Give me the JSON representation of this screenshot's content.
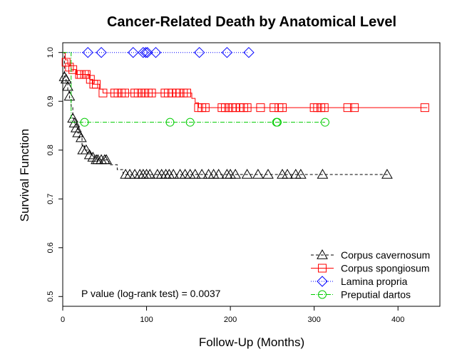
{
  "chart_data": {
    "type": "line",
    "subtype": "kaplan-meier",
    "title": "Cancer-Related Death by Anatomical Level",
    "xlabel": "Follow-Up (Months)",
    "ylabel": "Survival Function",
    "xlim": [
      0,
      450
    ],
    "ylim": [
      0.48,
      1.02
    ],
    "xticks": [
      0,
      100,
      200,
      300,
      400
    ],
    "yticks": [
      0.5,
      0.6,
      0.7,
      0.8,
      0.9,
      1.0
    ],
    "ytick_labels": [
      "0.5",
      "0.6",
      "0.7",
      "0.8",
      "0.9",
      "1.0"
    ],
    "grid": false,
    "legend_position": "bottom-right",
    "annotation": "P value (log-rank test) = 0.0037",
    "series": [
      {
        "name": "Corpus cavernosum",
        "color": "#000000",
        "dash": "4,3",
        "marker": "triangle",
        "steps": [
          [
            0,
            1.0
          ],
          [
            2,
            0.95
          ],
          [
            4,
            0.94
          ],
          [
            6,
            0.92
          ],
          [
            8,
            0.905
          ],
          [
            10,
            0.89
          ],
          [
            12,
            0.865
          ],
          [
            14,
            0.855
          ],
          [
            16,
            0.845
          ],
          [
            18,
            0.835
          ],
          [
            20,
            0.825
          ],
          [
            23,
            0.81
          ],
          [
            26,
            0.8
          ],
          [
            30,
            0.795
          ],
          [
            34,
            0.79
          ],
          [
            38,
            0.785
          ],
          [
            42,
            0.78
          ],
          [
            55,
            0.77
          ],
          [
            65,
            0.76
          ],
          [
            72,
            0.75
          ],
          [
            390,
            0.75
          ]
        ],
        "censored": [
          [
            2,
            0.95
          ],
          [
            4,
            0.945
          ],
          [
            6,
            0.93
          ],
          [
            8,
            0.91
          ],
          [
            12,
            0.865
          ],
          [
            14,
            0.855
          ],
          [
            16,
            0.845
          ],
          [
            18,
            0.835
          ],
          [
            22,
            0.825
          ],
          [
            24,
            0.8
          ],
          [
            28,
            0.8
          ],
          [
            32,
            0.79
          ],
          [
            36,
            0.785
          ],
          [
            40,
            0.78
          ],
          [
            42,
            0.78
          ],
          [
            46,
            0.78
          ],
          [
            50,
            0.78
          ],
          [
            52,
            0.78
          ],
          [
            75,
            0.75
          ],
          [
            80,
            0.75
          ],
          [
            86,
            0.75
          ],
          [
            92,
            0.75
          ],
          [
            96,
            0.75
          ],
          [
            100,
            0.75
          ],
          [
            104,
            0.75
          ],
          [
            113,
            0.75
          ],
          [
            118,
            0.75
          ],
          [
            123,
            0.75
          ],
          [
            127,
            0.75
          ],
          [
            132,
            0.75
          ],
          [
            140,
            0.75
          ],
          [
            146,
            0.75
          ],
          [
            152,
            0.75
          ],
          [
            158,
            0.75
          ],
          [
            166,
            0.75
          ],
          [
            174,
            0.75
          ],
          [
            180,
            0.75
          ],
          [
            186,
            0.75
          ],
          [
            196,
            0.75
          ],
          [
            200,
            0.75
          ],
          [
            206,
            0.75
          ],
          [
            220,
            0.75
          ],
          [
            233,
            0.75
          ],
          [
            245,
            0.75
          ],
          [
            262,
            0.75
          ],
          [
            268,
            0.75
          ],
          [
            278,
            0.75
          ],
          [
            284,
            0.75
          ],
          [
            310,
            0.75
          ],
          [
            387,
            0.75
          ]
        ]
      },
      {
        "name": "Corpus spongiosum",
        "color": "#ff0000",
        "dash": "",
        "marker": "square",
        "steps": [
          [
            0,
            1.0
          ],
          [
            3,
            0.985
          ],
          [
            6,
            0.975
          ],
          [
            10,
            0.965
          ],
          [
            16,
            0.955
          ],
          [
            32,
            0.945
          ],
          [
            36,
            0.935
          ],
          [
            44,
            0.925
          ],
          [
            48,
            0.917
          ],
          [
            150,
            0.917
          ],
          [
            154,
            0.906
          ],
          [
            158,
            0.897
          ],
          [
            162,
            0.887
          ],
          [
            435,
            0.887
          ]
        ],
        "censored": [
          [
            4,
            0.98
          ],
          [
            8,
            0.97
          ],
          [
            12,
            0.965
          ],
          [
            20,
            0.955
          ],
          [
            22,
            0.955
          ],
          [
            26,
            0.955
          ],
          [
            28,
            0.955
          ],
          [
            33,
            0.945
          ],
          [
            37,
            0.935
          ],
          [
            40,
            0.935
          ],
          [
            48,
            0.917
          ],
          [
            62,
            0.917
          ],
          [
            66,
            0.917
          ],
          [
            70,
            0.917
          ],
          [
            74,
            0.917
          ],
          [
            86,
            0.917
          ],
          [
            90,
            0.917
          ],
          [
            94,
            0.917
          ],
          [
            98,
            0.917
          ],
          [
            102,
            0.917
          ],
          [
            106,
            0.917
          ],
          [
            122,
            0.917
          ],
          [
            126,
            0.917
          ],
          [
            130,
            0.917
          ],
          [
            136,
            0.917
          ],
          [
            140,
            0.917
          ],
          [
            144,
            0.917
          ],
          [
            148,
            0.917
          ],
          [
            162,
            0.887
          ],
          [
            166,
            0.887
          ],
          [
            170,
            0.887
          ],
          [
            190,
            0.887
          ],
          [
            194,
            0.887
          ],
          [
            198,
            0.887
          ],
          [
            202,
            0.887
          ],
          [
            206,
            0.887
          ],
          [
            212,
            0.887
          ],
          [
            216,
            0.887
          ],
          [
            220,
            0.887
          ],
          [
            236,
            0.887
          ],
          [
            252,
            0.887
          ],
          [
            258,
            0.887
          ],
          [
            262,
            0.887
          ],
          [
            300,
            0.887
          ],
          [
            304,
            0.887
          ],
          [
            308,
            0.887
          ],
          [
            312,
            0.887
          ],
          [
            340,
            0.887
          ],
          [
            348,
            0.887
          ],
          [
            432,
            0.887
          ]
        ]
      },
      {
        "name": "Lamina propria",
        "color": "#0000ff",
        "dash": "1,2",
        "marker": "diamond",
        "steps": [
          [
            0,
            1.0
          ],
          [
            222,
            1.0
          ]
        ],
        "censored": [
          [
            30,
            1.0
          ],
          [
            46,
            1.0
          ],
          [
            84,
            1.0
          ],
          [
            96,
            1.0
          ],
          [
            99,
            1.0
          ],
          [
            101,
            1.0
          ],
          [
            111,
            1.0
          ],
          [
            163,
            1.0
          ],
          [
            196,
            1.0
          ],
          [
            222,
            1.0
          ]
        ]
      },
      {
        "name": "Preputial dartos",
        "color": "#00cc00",
        "dash": "6,2,1,2",
        "marker": "circle",
        "steps": [
          [
            0,
            1.0
          ],
          [
            8,
            1.0
          ],
          [
            10,
            0.857
          ],
          [
            313,
            0.857
          ]
        ],
        "censored": [
          [
            26,
            0.857
          ],
          [
            128,
            0.857
          ],
          [
            152,
            0.857
          ],
          [
            255,
            0.857
          ],
          [
            256,
            0.857
          ],
          [
            313,
            0.857
          ]
        ]
      }
    ]
  }
}
